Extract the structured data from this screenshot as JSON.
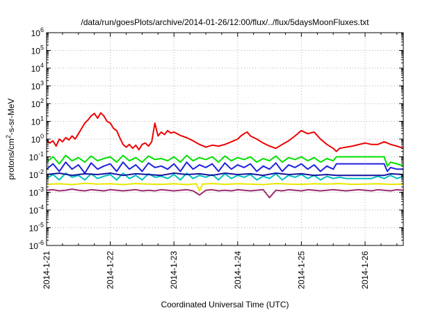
{
  "chart_data": {
    "type": "line",
    "title": "/data/run/goesPlots/archive/2014-01-26/12:00/flux/../flux/5daysMoonFluxes.txt",
    "xlabel": "Coordinated Universal Time (UTC)",
    "ylabel": {
      "pre": "protons/cm",
      "sup": "2",
      "post": "-s-sr-MeV"
    },
    "x_range_days": [
      0,
      5.6
    ],
    "x_ticks": [
      {
        "day": 0,
        "label": "2014-1-21"
      },
      {
        "day": 1,
        "label": "2014-1-22"
      },
      {
        "day": 2,
        "label": "2014-1-23"
      },
      {
        "day": 3,
        "label": "2014-1-24"
      },
      {
        "day": 4,
        "label": "2014-1-25"
      },
      {
        "day": 5,
        "label": "2014-1-26"
      }
    ],
    "y_scale": "log",
    "y_exp_range": [
      -6,
      6
    ],
    "y_ticks": [
      {
        "exp": 6,
        "base": "10",
        "sup": "6"
      },
      {
        "exp": 5,
        "base": "10",
        "sup": "5"
      },
      {
        "exp": 4,
        "base": "10",
        "sup": "4"
      },
      {
        "exp": 3,
        "base": "10",
        "sup": "3"
      },
      {
        "exp": 2,
        "base": "10",
        "sup": "2"
      },
      {
        "exp": 1,
        "base": "10",
        "sup": "1"
      },
      {
        "exp": 0,
        "base": "10",
        "sup": "0"
      },
      {
        "exp": -1,
        "base": "10",
        "sup": "-1"
      },
      {
        "exp": -2,
        "base": "10",
        "sup": "-2"
      },
      {
        "exp": -3,
        "base": "10",
        "sup": "-3"
      },
      {
        "exp": -4,
        "base": "10",
        "sup": "-4"
      },
      {
        "exp": -5,
        "base": "10",
        "sup": "-5"
      },
      {
        "exp": -6,
        "base": "10",
        "sup": "-6"
      }
    ],
    "grid": true,
    "series": [
      {
        "color": "#9b2d6e",
        "x": [
          0,
          0.1,
          0.2,
          0.3,
          0.4,
          0.5,
          0.6,
          0.7,
          0.8,
          0.9,
          1.0,
          1.1,
          1.2,
          1.3,
          1.4,
          1.5,
          1.6,
          1.7,
          1.8,
          1.9,
          2.0,
          2.1,
          2.2,
          2.3,
          2.4,
          2.5,
          2.6,
          2.7,
          2.8,
          2.9,
          3.0,
          3.1,
          3.2,
          3.3,
          3.4,
          3.5,
          3.6,
          3.7,
          3.8,
          3.9,
          4.0,
          4.1,
          4.2,
          4.3,
          4.4,
          4.5,
          4.6,
          4.7,
          4.8,
          4.9,
          5.0,
          5.1,
          5.2,
          5.3,
          5.4,
          5.5,
          5.6
        ],
        "y": [
          0.0013,
          0.0014,
          0.0012,
          0.0013,
          0.0015,
          0.0013,
          0.0012,
          0.0014,
          0.0013,
          0.0012,
          0.0014,
          0.0013,
          0.0012,
          0.0013,
          0.0014,
          0.0012,
          0.0013,
          0.0012,
          0.0014,
          0.0013,
          0.0012,
          0.0013,
          0.0014,
          0.0012,
          0.0007,
          0.0013,
          0.0014,
          0.0012,
          0.0013,
          0.0012,
          0.0014,
          0.0013,
          0.0012,
          0.0013,
          0.0014,
          0.0005,
          0.0013,
          0.0012,
          0.0014,
          0.0013,
          0.0012,
          0.0014,
          0.0013,
          0.0012,
          0.0013,
          0.0014,
          0.0013,
          0.0012,
          0.0013,
          0.0014,
          0.0013,
          0.0012,
          0.0014,
          0.0013,
          0.0012,
          0.0014,
          0.0013
        ]
      },
      {
        "color": "#e8e800",
        "x": [
          0,
          0.2,
          0.4,
          0.6,
          0.8,
          1.0,
          1.2,
          1.4,
          1.6,
          1.8,
          2.0,
          2.2,
          2.35,
          2.4,
          2.45,
          2.6,
          2.8,
          3.0,
          3.2,
          3.4,
          3.6,
          3.8,
          4.0,
          4.2,
          4.4,
          4.6,
          4.8,
          5.0,
          5.2,
          5.4,
          5.6
        ],
        "y": [
          0.0028,
          0.003,
          0.0027,
          0.0032,
          0.0029,
          0.003,
          0.0027,
          0.0031,
          0.0029,
          0.0028,
          0.003,
          0.0027,
          0.003,
          0.0012,
          0.0029,
          0.0031,
          0.0028,
          0.003,
          0.0029,
          0.0027,
          0.0031,
          0.0029,
          0.0028,
          0.003,
          0.0029,
          0.0031,
          0.0028,
          0.0029,
          0.003,
          0.0028,
          0.0029
        ]
      },
      {
        "color": "#00c0c0",
        "x": [
          0,
          0.1,
          0.2,
          0.3,
          0.4,
          0.5,
          0.6,
          0.7,
          0.8,
          0.9,
          1.0,
          1.1,
          1.2,
          1.3,
          1.4,
          1.5,
          1.6,
          1.7,
          1.8,
          1.9,
          2.0,
          2.1,
          2.2,
          2.3,
          2.4,
          2.5,
          2.6,
          2.7,
          2.8,
          2.9,
          3.0,
          3.1,
          3.2,
          3.3,
          3.4,
          3.5,
          3.6,
          3.7,
          3.8,
          3.9,
          4.0,
          4.1,
          4.2,
          4.3,
          4.4,
          4.5,
          4.6,
          4.7,
          4.8,
          4.9,
          5.0,
          5.1,
          5.2,
          5.3,
          5.4,
          5.5,
          5.6
        ],
        "y": [
          0.006,
          0.01,
          0.005,
          0.012,
          0.007,
          0.009,
          0.005,
          0.011,
          0.006,
          0.008,
          0.01,
          0.005,
          0.012,
          0.006,
          0.009,
          0.005,
          0.011,
          0.007,
          0.008,
          0.006,
          0.01,
          0.005,
          0.012,
          0.006,
          0.009,
          0.007,
          0.01,
          0.005,
          0.011,
          0.006,
          0.009,
          0.007,
          0.01,
          0.005,
          0.008,
          0.006,
          0.011,
          0.005,
          0.009,
          0.007,
          0.01,
          0.006,
          0.009,
          0.005,
          0.008,
          0.006,
          0.007,
          0.006,
          0.006,
          0.006,
          0.006,
          0.006,
          0.008,
          0.006,
          0.009,
          0.006,
          0.008
        ]
      },
      {
        "color": "#00e000",
        "x": [
          0,
          0.1,
          0.2,
          0.3,
          0.4,
          0.5,
          0.6,
          0.7,
          0.8,
          0.9,
          1.0,
          1.1,
          1.2,
          1.3,
          1.4,
          1.5,
          1.6,
          1.7,
          1.8,
          1.9,
          2.0,
          2.1,
          2.2,
          2.3,
          2.4,
          2.5,
          2.6,
          2.7,
          2.8,
          2.9,
          3.0,
          3.1,
          3.2,
          3.3,
          3.4,
          3.5,
          3.6,
          3.7,
          3.8,
          3.9,
          4.0,
          4.1,
          4.2,
          4.3,
          4.4,
          4.5,
          4.55,
          4.6,
          4.8,
          5.0,
          5.2,
          5.3,
          5.35,
          5.4,
          5.5,
          5.6
        ],
        "y": [
          0.05,
          0.1,
          0.04,
          0.12,
          0.06,
          0.09,
          0.05,
          0.11,
          0.06,
          0.08,
          0.1,
          0.05,
          0.12,
          0.06,
          0.09,
          0.05,
          0.11,
          0.07,
          0.08,
          0.06,
          0.1,
          0.05,
          0.12,
          0.06,
          0.09,
          0.07,
          0.1,
          0.05,
          0.11,
          0.06,
          0.09,
          0.07,
          0.1,
          0.05,
          0.08,
          0.06,
          0.11,
          0.05,
          0.09,
          0.07,
          0.1,
          0.06,
          0.09,
          0.05,
          0.08,
          0.06,
          0.1,
          0.1,
          0.1,
          0.1,
          0.1,
          0.1,
          0.03,
          0.05,
          0.04,
          0.03
        ]
      },
      {
        "color": "#2020e0",
        "x": [
          0,
          0.1,
          0.2,
          0.3,
          0.4,
          0.5,
          0.6,
          0.7,
          0.8,
          0.9,
          1.0,
          1.1,
          1.2,
          1.3,
          1.4,
          1.5,
          1.6,
          1.7,
          1.8,
          1.9,
          2.0,
          2.1,
          2.2,
          2.3,
          2.4,
          2.5,
          2.6,
          2.7,
          2.8,
          2.9,
          3.0,
          3.1,
          3.2,
          3.3,
          3.4,
          3.5,
          3.6,
          3.7,
          3.8,
          3.9,
          4.0,
          4.1,
          4.2,
          4.3,
          4.4,
          4.5,
          4.55,
          4.6,
          4.8,
          5.0,
          5.2,
          5.3,
          5.35,
          5.4,
          5.5,
          5.6
        ],
        "y": [
          0.02,
          0.04,
          0.015,
          0.05,
          0.02,
          0.035,
          0.012,
          0.045,
          0.02,
          0.03,
          0.04,
          0.015,
          0.05,
          0.02,
          0.035,
          0.015,
          0.045,
          0.025,
          0.03,
          0.02,
          0.04,
          0.015,
          0.05,
          0.02,
          0.035,
          0.025,
          0.04,
          0.015,
          0.045,
          0.02,
          0.035,
          0.025,
          0.04,
          0.015,
          0.03,
          0.02,
          0.045,
          0.015,
          0.035,
          0.025,
          0.04,
          0.02,
          0.035,
          0.015,
          0.03,
          0.02,
          0.04,
          0.04,
          0.04,
          0.04,
          0.04,
          0.04,
          0.015,
          0.025,
          0.02,
          0.02
        ]
      },
      {
        "color": "#1414a0",
        "x": [
          0,
          0.2,
          0.4,
          0.6,
          0.8,
          1.0,
          1.2,
          1.4,
          1.6,
          1.8,
          2.0,
          2.2,
          2.4,
          2.6,
          2.8,
          3.0,
          3.2,
          3.4,
          3.6,
          3.8,
          4.0,
          4.2,
          4.4,
          4.55,
          4.6,
          5.0,
          5.3,
          5.35,
          5.4,
          5.6
        ],
        "y": [
          0.01,
          0.012,
          0.009,
          0.011,
          0.01,
          0.012,
          0.009,
          0.011,
          0.01,
          0.009,
          0.012,
          0.01,
          0.011,
          0.009,
          0.012,
          0.01,
          0.011,
          0.009,
          0.012,
          0.01,
          0.011,
          0.009,
          0.01,
          0.009,
          0.009,
          0.009,
          0.009,
          0.01,
          0.011,
          0.01
        ]
      },
      {
        "color": "#ee0000",
        "x": [
          0,
          0.05,
          0.1,
          0.15,
          0.2,
          0.25,
          0.3,
          0.35,
          0.4,
          0.45,
          0.5,
          0.55,
          0.6,
          0.65,
          0.7,
          0.75,
          0.8,
          0.85,
          0.9,
          0.95,
          1.0,
          1.05,
          1.1,
          1.15,
          1.2,
          1.25,
          1.3,
          1.35,
          1.4,
          1.45,
          1.5,
          1.55,
          1.6,
          1.65,
          1.7,
          1.75,
          1.8,
          1.85,
          1.9,
          1.95,
          2.0,
          2.1,
          2.2,
          2.3,
          2.4,
          2.5,
          2.6,
          2.7,
          2.8,
          2.9,
          3.0,
          3.05,
          3.1,
          3.15,
          3.2,
          3.3,
          3.4,
          3.5,
          3.6,
          3.7,
          3.8,
          3.9,
          4.0,
          4.1,
          4.2,
          4.3,
          4.4,
          4.5,
          4.55,
          4.6,
          4.8,
          5.0,
          5.1,
          5.2,
          5.3,
          5.35,
          5.4,
          5.5,
          5.6
        ],
        "y": [
          0.9,
          0.6,
          0.8,
          0.4,
          1.0,
          0.7,
          1.2,
          0.9,
          1.5,
          1.0,
          2.0,
          4.0,
          8.0,
          12.0,
          20.0,
          28.0,
          15.0,
          30.0,
          20.0,
          10.0,
          8.0,
          4.0,
          3.0,
          1.2,
          0.5,
          0.35,
          0.5,
          0.3,
          0.45,
          0.25,
          0.5,
          0.6,
          0.4,
          0.7,
          8.0,
          1.5,
          2.5,
          1.8,
          3.0,
          2.2,
          2.5,
          1.6,
          1.2,
          0.8,
          0.5,
          0.35,
          0.45,
          0.4,
          0.5,
          0.7,
          1.0,
          1.5,
          2.0,
          2.5,
          1.5,
          1.0,
          0.6,
          0.4,
          0.3,
          0.5,
          0.8,
          1.5,
          3.0,
          2.0,
          2.5,
          1.0,
          0.5,
          0.3,
          0.2,
          0.3,
          0.4,
          0.6,
          0.5,
          0.5,
          0.7,
          0.6,
          0.5,
          0.4,
          0.3
        ]
      }
    ]
  }
}
